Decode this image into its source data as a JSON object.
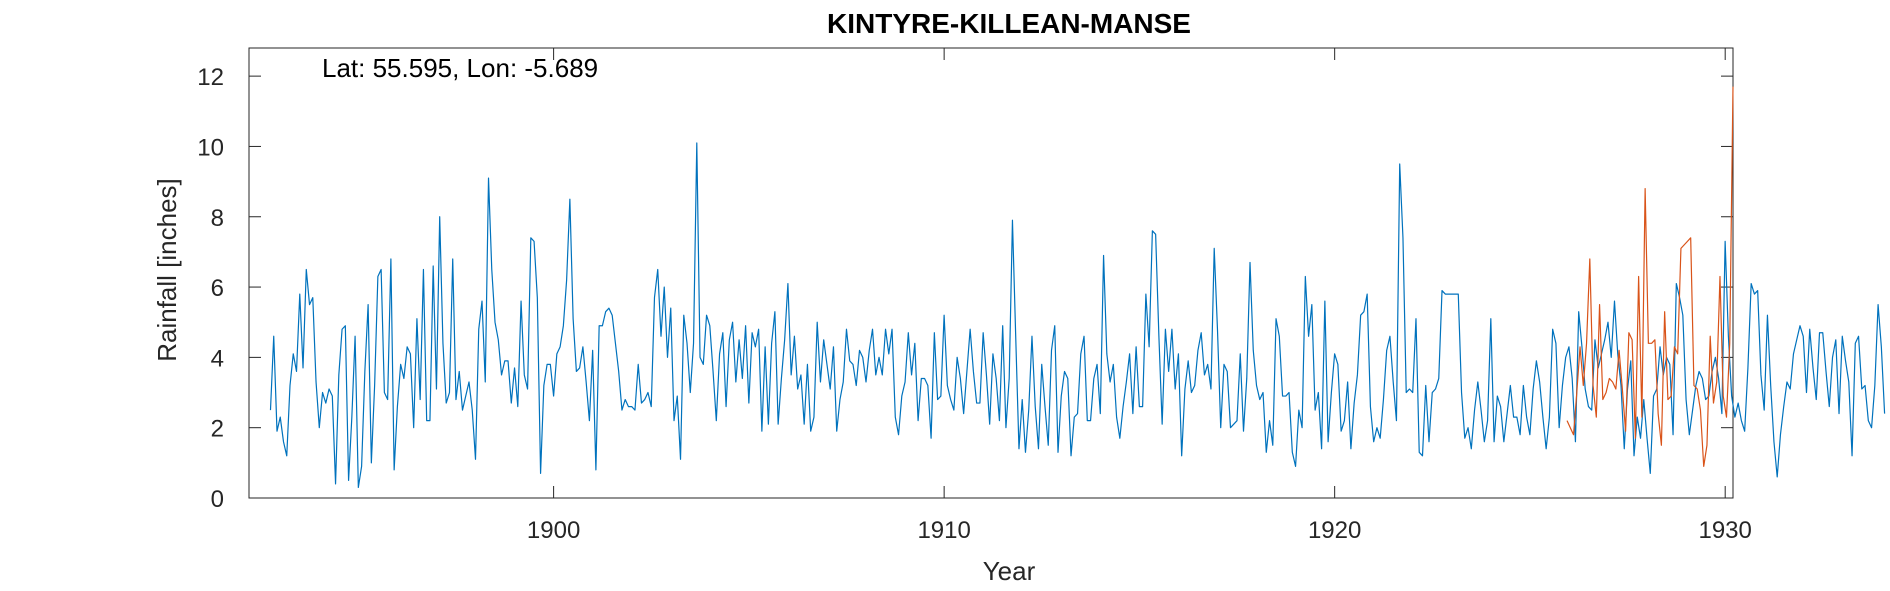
{
  "chart_data": {
    "type": "line",
    "title": "KINTYRE-KILLEAN-MANSE",
    "xlabel": "Year",
    "ylabel": "Rainfall [inches]",
    "annotation": "Lat: 55.595, Lon: -5.689",
    "xlim": [
      1892.2,
      1930.2
    ],
    "ylim": [
      0,
      12.8
    ],
    "xticks": [
      1900,
      1910,
      1920,
      1930
    ],
    "yticks": [
      0,
      2,
      4,
      6,
      8,
      10,
      12
    ],
    "grid": false,
    "colors": {
      "series1": "#0072BD",
      "series2": "#D95319",
      "axis": "#262626"
    },
    "series": [
      {
        "x_start": 1892.75,
        "x_step": 0.08333,
        "values": [
          2.5,
          4.6,
          1.9,
          2.3,
          1.6,
          1.2,
          3.2,
          4.1,
          3.6,
          5.8,
          3.7,
          6.5,
          5.5,
          5.7,
          3.3,
          2.0,
          3.0,
          2.7,
          3.1,
          2.9,
          0.4,
          3.5,
          4.8,
          4.9,
          0.5,
          2.3,
          4.6,
          0.3,
          0.9,
          3.6,
          5.5,
          1.0,
          3.2,
          6.3,
          6.5,
          3.0,
          2.8,
          6.8,
          0.8,
          2.6,
          3.8,
          3.4,
          4.3,
          4.1,
          2.0,
          5.1,
          2.8,
          6.5,
          2.2,
          2.2,
          6.6,
          3.1,
          8.0,
          4.4,
          2.7,
          3.0,
          6.8,
          2.8,
          3.6,
          2.5,
          2.9,
          3.3,
          2.5,
          1.1,
          4.8,
          5.6,
          3.3,
          9.1,
          6.5,
          5.0,
          4.5,
          3.5,
          3.9,
          3.9,
          2.7,
          3.7,
          2.6,
          5.6,
          3.5,
          3.1,
          7.4,
          7.3,
          5.7,
          0.7,
          3.2,
          3.8,
          3.8,
          2.9,
          4.1,
          4.3,
          4.9,
          6.2,
          8.5,
          5.1,
          3.6,
          3.7,
          4.3,
          3.3,
          2.2,
          4.2,
          0.8,
          4.9,
          4.9,
          5.3,
          5.4,
          5.2,
          4.4,
          3.6,
          2.5,
          2.8,
          2.6,
          2.6,
          2.5,
          3.8,
          2.7,
          2.8,
          3.0,
          2.6,
          5.7,
          6.5,
          4.6,
          6.0,
          4.0,
          5.4,
          2.2,
          2.9,
          1.1,
          5.2,
          4.4,
          3.0,
          4.4,
          10.1,
          4.0,
          3.8,
          5.2,
          4.9,
          3.6,
          2.2,
          4.1,
          4.7,
          2.6,
          4.5,
          5.0,
          3.3,
          4.5,
          3.4,
          4.9,
          2.7,
          4.7,
          4.3,
          4.8,
          1.9,
          4.3,
          2.1,
          4.4,
          5.3,
          2.1,
          3.4,
          4.5,
          6.1,
          3.5,
          4.6,
          3.1,
          3.5,
          2.1,
          3.8,
          1.9,
          2.3,
          5.0,
          3.3,
          4.5,
          3.8,
          3.1,
          4.3,
          1.9,
          2.8,
          3.3,
          4.8,
          3.9,
          3.8,
          3.2,
          4.2,
          4.0,
          3.3,
          4.2,
          4.8,
          3.5,
          4.0,
          3.5,
          4.8,
          4.1,
          4.8,
          2.3,
          1.8,
          2.9,
          3.3,
          4.7,
          3.5,
          4.4,
          2.2,
          3.4,
          3.4,
          3.2,
          1.7,
          4.7,
          2.8,
          2.9,
          5.2,
          3.2,
          2.8,
          2.5,
          4.0,
          3.4,
          2.4,
          3.6,
          4.8,
          3.6,
          2.7,
          2.7,
          4.7,
          3.5,
          2.1,
          4.1,
          3.4,
          2.2,
          4.9,
          2.0,
          3.4,
          7.9,
          4.6,
          1.4,
          2.8,
          1.3,
          2.5,
          4.6,
          2.6,
          1.4,
          3.8,
          2.6,
          1.5,
          4.2,
          4.9,
          1.3,
          2.9,
          3.6,
          3.4,
          1.2,
          2.3,
          2.4,
          4.1,
          4.6,
          2.2,
          2.2,
          3.4,
          3.8,
          2.4,
          6.9,
          4.1,
          3.3,
          3.8,
          2.3,
          1.7,
          2.6,
          3.3,
          4.1,
          2.4,
          4.3,
          2.6,
          2.6,
          5.8,
          4.3,
          7.6,
          7.5,
          4.6,
          2.1,
          4.8,
          3.6,
          4.8,
          3.1,
          4.1,
          1.2,
          3.1,
          3.9,
          3.0,
          3.2,
          4.2,
          4.7,
          3.5,
          3.8,
          3.1,
          7.1,
          4.8,
          2.0,
          3.8,
          3.6,
          2.0,
          2.1,
          2.2,
          4.1,
          1.9,
          3.4,
          6.7,
          4.2,
          3.2,
          2.8,
          3.0,
          1.3,
          2.2,
          1.5,
          5.1,
          4.6,
          2.9,
          2.9,
          3.0,
          1.3,
          0.9,
          2.5,
          2.0,
          6.3,
          4.6,
          5.5,
          2.5,
          3.0,
          1.4,
          5.6,
          1.6,
          3.0,
          4.1,
          3.8,
          1.9,
          2.2,
          3.3,
          1.4,
          2.7,
          3.5,
          5.2,
          5.3,
          5.8,
          2.6,
          1.6,
          2.0,
          1.7,
          2.8,
          4.2,
          4.6,
          3.3,
          2.2,
          9.5,
          7.4,
          3.0,
          3.1,
          3.0,
          5.1,
          1.3,
          1.2,
          3.2,
          1.6,
          3.0,
          3.1,
          3.4,
          5.9,
          5.8,
          5.8,
          5.8,
          5.8,
          5.8,
          3.0,
          1.7,
          2.0,
          1.4,
          2.5,
          3.3,
          2.5,
          1.6,
          2.2,
          5.1,
          1.6,
          2.9,
          2.6,
          1.6,
          2.4,
          3.2,
          2.3,
          2.3,
          1.8,
          3.2,
          2.3,
          1.8,
          3.1,
          3.9,
          3.3,
          2.3,
          1.4,
          2.3,
          4.8,
          4.4,
          2.0,
          3.2,
          4.0,
          4.3,
          3.4,
          1.6,
          5.3,
          4.3,
          3.1,
          2.6,
          2.5,
          4.5,
          3.7,
          4.1,
          4.5,
          5.0,
          4.0,
          5.6,
          4.1,
          3.2,
          1.4,
          3.1,
          3.9,
          1.2,
          2.3,
          1.7,
          2.8,
          1.7,
          0.7,
          2.9,
          3.1,
          4.3,
          3.5,
          4.0,
          3.8,
          1.8,
          6.1,
          5.7,
          5.2,
          2.8,
          1.8,
          2.5,
          3.2,
          3.6,
          3.4,
          2.8,
          2.9,
          3.6,
          4.0,
          3.4,
          2.4,
          7.3,
          4.6,
          2.9,
          2.3,
          2.7,
          2.2,
          1.9,
          3.7,
          6.1,
          5.8,
          5.9,
          3.5,
          2.5,
          5.2,
          3.2,
          1.6,
          0.6,
          1.8,
          2.6,
          3.3,
          3.1,
          4.1,
          4.5,
          4.9,
          4.6,
          3.0,
          4.8,
          3.7,
          2.8,
          4.7,
          4.7,
          3.6,
          2.6,
          4.0,
          4.5,
          2.4,
          4.6,
          3.9,
          3.3,
          1.2,
          4.4,
          4.6,
          3.1,
          3.2,
          2.2,
          2.0,
          3.2,
          5.5,
          4.3,
          2.4
        ]
      },
      {
        "x_start": 1925.95,
        "x_step": 0.08333,
        "values": [
          2.2,
          2.0,
          1.8,
          3.0,
          4.3,
          3.2,
          4.4,
          6.8,
          3.2,
          2.3,
          5.5,
          2.8,
          3.0,
          3.4,
          3.3,
          3.1,
          4.2,
          3.1,
          1.9,
          4.7,
          4.5,
          1.7,
          6.3,
          2.3,
          8.8,
          4.4,
          4.4,
          4.5,
          2.4,
          1.5,
          5.3,
          2.8,
          2.9,
          4.3,
          4.1,
          7.1,
          7.2,
          7.3,
          7.4,
          3.2,
          3.1,
          2.5,
          0.9,
          1.5,
          4.6,
          2.7,
          3.3,
          6.3,
          2.9,
          2.3,
          4.4,
          11.7
        ]
      }
    ]
  }
}
